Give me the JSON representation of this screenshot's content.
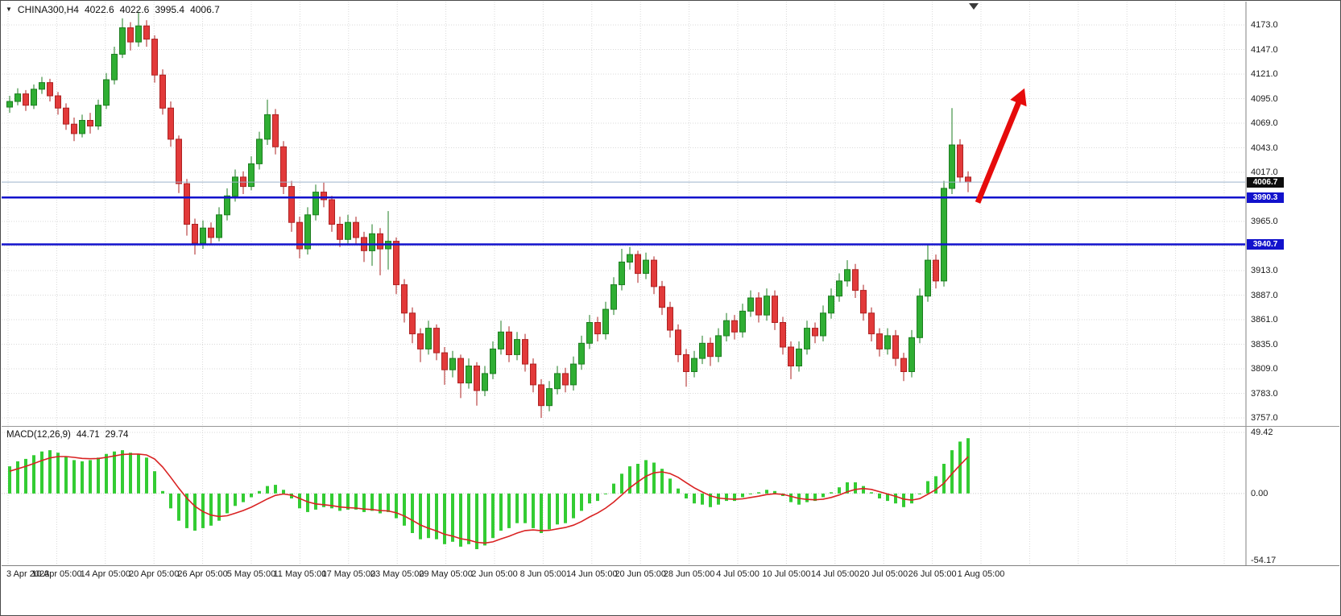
{
  "window": {
    "symbol_label": "CHINA300,H4",
    "ohlc_open": "4022.6",
    "ohlc_high": "4022.6",
    "ohlc_low": "3995.4",
    "ohlc_close": "4006.7",
    "one_click_icon": "▼"
  },
  "macd_panel": {
    "label": "MACD(12,26,9)",
    "main_value": "44.71",
    "signal_value": "29.74",
    "scale_top": "49.42",
    "scale_zero": "0.00",
    "scale_bottom": "-54.17"
  },
  "colors": {
    "bull": "#2fae33",
    "bull_border": "#1d7d20",
    "bear": "#e23a3a",
    "bear_border": "#ad2222",
    "hline": "#1212cc",
    "grid": "#d9d9d9",
    "macd_grid": "#c9c9c9",
    "signal": "#d92222",
    "histogram": "#33cc33",
    "current_price_line": "#9db4cc",
    "separator": "#808080",
    "shift_marker": "#3a3a3a"
  },
  "chart_data": {
    "type": "candlestick",
    "symbol": "CHINA300",
    "timeframe": "H4",
    "title": "CHINA300,H4 4022.6 4022.6 3995.4 4006.7",
    "current_price": 4006.7,
    "current_price_label": "4006.7",
    "y_tick_labels": [
      "4173.0",
      "4147.0",
      "4121.0",
      "4095.0",
      "4069.0",
      "4043.0",
      "4017.0",
      "3991.0",
      "3965.0",
      "3939.0",
      "3913.0",
      "3887.0",
      "3861.0",
      "3835.0",
      "3809.0",
      "3783.0",
      "3757.0"
    ],
    "y_tick_interval": 26,
    "x_labels": [
      "3 Apr 2023",
      "10 Apr 05:00",
      "14 Apr 05:00",
      "20 Apr 05:00",
      "26 Apr 05:00",
      "5 May 05:00",
      "11 May 05:00",
      "17 May 05:00",
      "23 May 05:00",
      "29 May 05:00",
      "2 Jun 05:00",
      "8 Jun 05:00",
      "14 Jun 05:00",
      "20 Jun 05:00",
      "28 Jun 05:00",
      "4 Jul 05:00",
      "10 Jul 05:00",
      "14 Jul 05:00",
      "20 Jul 05:00",
      "26 Jul 05:00",
      "1 Aug 05:00"
    ],
    "horizontal_lines": [
      {
        "price": 3990.3,
        "label": "3990.3",
        "role": "support-resistance"
      },
      {
        "price": 3940.7,
        "label": "3940.7",
        "role": "support-resistance"
      }
    ],
    "annotations": [
      {
        "type": "arrow",
        "direction": "up",
        "from_price": 3985,
        "to_price": 4106,
        "color": "#e60b0b"
      }
    ],
    "candles": [
      [
        4086,
        4098,
        4080,
        4092
      ],
      [
        4092,
        4106,
        4088,
        4100
      ],
      [
        4100,
        4104,
        4082,
        4088
      ],
      [
        4088,
        4110,
        4084,
        4105
      ],
      [
        4105,
        4118,
        4100,
        4112
      ],
      [
        4112,
        4116,
        4092,
        4098
      ],
      [
        4098,
        4102,
        4078,
        4085
      ],
      [
        4085,
        4090,
        4062,
        4068
      ],
      [
        4068,
        4075,
        4050,
        4058
      ],
      [
        4058,
        4078,
        4054,
        4072
      ],
      [
        4072,
        4080,
        4058,
        4066
      ],
      [
        4066,
        4094,
        4062,
        4088
      ],
      [
        4088,
        4122,
        4084,
        4115
      ],
      [
        4115,
        4150,
        4110,
        4142
      ],
      [
        4142,
        4180,
        4138,
        4170
      ],
      [
        4170,
        4176,
        4146,
        4155
      ],
      [
        4155,
        4187,
        4150,
        4172
      ],
      [
        4172,
        4178,
        4150,
        4158
      ],
      [
        4158,
        4162,
        4112,
        4120
      ],
      [
        4120,
        4126,
        4078,
        4085
      ],
      [
        4085,
        4092,
        4044,
        4052
      ],
      [
        4052,
        4056,
        3995,
        4005
      ],
      [
        4005,
        4010,
        3950,
        3962
      ],
      [
        3962,
        3968,
        3930,
        3942
      ],
      [
        3942,
        3966,
        3936,
        3958
      ],
      [
        3958,
        3964,
        3940,
        3948
      ],
      [
        3948,
        3980,
        3944,
        3972
      ],
      [
        3972,
        4000,
        3966,
        3992
      ],
      [
        3992,
        4020,
        3986,
        4012
      ],
      [
        4012,
        4018,
        3994,
        4002
      ],
      [
        4002,
        4034,
        3998,
        4026
      ],
      [
        4026,
        4060,
        4020,
        4052
      ],
      [
        4052,
        4094,
        4046,
        4078
      ],
      [
        4078,
        4084,
        4036,
        4044
      ],
      [
        4044,
        4050,
        3994,
        4002
      ],
      [
        4002,
        4008,
        3954,
        3964
      ],
      [
        3964,
        3970,
        3926,
        3936
      ],
      [
        3936,
        3980,
        3930,
        3972
      ],
      [
        3972,
        4004,
        3966,
        3996
      ],
      [
        3996,
        4006,
        3980,
        3988
      ],
      [
        3988,
        3992,
        3954,
        3962
      ],
      [
        3962,
        3970,
        3938,
        3946
      ],
      [
        3946,
        3972,
        3940,
        3964
      ],
      [
        3964,
        3970,
        3940,
        3948
      ],
      [
        3948,
        3954,
        3922,
        3934
      ],
      [
        3934,
        3962,
        3918,
        3952
      ],
      [
        3952,
        3958,
        3908,
        3936
      ],
      [
        3936,
        3976,
        3914,
        3944
      ],
      [
        3944,
        3948,
        3888,
        3898
      ],
      [
        3898,
        3904,
        3858,
        3868
      ],
      [
        3868,
        3874,
        3836,
        3846
      ],
      [
        3846,
        3852,
        3816,
        3830
      ],
      [
        3830,
        3860,
        3824,
        3852
      ],
      [
        3852,
        3856,
        3818,
        3826
      ],
      [
        3826,
        3832,
        3792,
        3808
      ],
      [
        3808,
        3828,
        3800,
        3820
      ],
      [
        3820,
        3824,
        3778,
        3794
      ],
      [
        3794,
        3820,
        3788,
        3812
      ],
      [
        3812,
        3816,
        3770,
        3786
      ],
      [
        3786,
        3812,
        3780,
        3804
      ],
      [
        3804,
        3838,
        3798,
        3830
      ],
      [
        3830,
        3860,
        3824,
        3848
      ],
      [
        3848,
        3854,
        3816,
        3824
      ],
      [
        3824,
        3848,
        3818,
        3840
      ],
      [
        3840,
        3846,
        3806,
        3814
      ],
      [
        3814,
        3820,
        3784,
        3792
      ],
      [
        3792,
        3798,
        3757,
        3770
      ],
      [
        3770,
        3796,
        3764,
        3788
      ],
      [
        3788,
        3812,
        3782,
        3804
      ],
      [
        3804,
        3810,
        3784,
        3792
      ],
      [
        3792,
        3822,
        3786,
        3814
      ],
      [
        3814,
        3844,
        3808,
        3836
      ],
      [
        3836,
        3866,
        3830,
        3858
      ],
      [
        3858,
        3864,
        3838,
        3846
      ],
      [
        3846,
        3880,
        3840,
        3872
      ],
      [
        3872,
        3906,
        3866,
        3898
      ],
      [
        3898,
        3936,
        3892,
        3922
      ],
      [
        3922,
        3938,
        3914,
        3930
      ],
      [
        3930,
        3934,
        3900,
        3910
      ],
      [
        3910,
        3932,
        3904,
        3924
      ],
      [
        3924,
        3928,
        3888,
        3896
      ],
      [
        3896,
        3902,
        3866,
        3874
      ],
      [
        3874,
        3880,
        3842,
        3850
      ],
      [
        3850,
        3856,
        3816,
        3824
      ],
      [
        3824,
        3830,
        3790,
        3806
      ],
      [
        3806,
        3828,
        3800,
        3820
      ],
      [
        3820,
        3844,
        3814,
        3836
      ],
      [
        3836,
        3842,
        3812,
        3822
      ],
      [
        3822,
        3852,
        3816,
        3844
      ],
      [
        3844,
        3868,
        3838,
        3860
      ],
      [
        3860,
        3866,
        3840,
        3848
      ],
      [
        3848,
        3878,
        3842,
        3870
      ],
      [
        3870,
        3892,
        3864,
        3884
      ],
      [
        3884,
        3890,
        3858,
        3866
      ],
      [
        3866,
        3894,
        3860,
        3886
      ],
      [
        3886,
        3892,
        3850,
        3858
      ],
      [
        3858,
        3864,
        3824,
        3832
      ],
      [
        3832,
        3838,
        3798,
        3812
      ],
      [
        3812,
        3838,
        3806,
        3830
      ],
      [
        3830,
        3860,
        3824,
        3852
      ],
      [
        3852,
        3858,
        3836,
        3844
      ],
      [
        3844,
        3876,
        3838,
        3868
      ],
      [
        3868,
        3894,
        3862,
        3886
      ],
      [
        3886,
        3910,
        3880,
        3902
      ],
      [
        3902,
        3924,
        3896,
        3914
      ],
      [
        3914,
        3920,
        3884,
        3892
      ],
      [
        3892,
        3898,
        3860,
        3868
      ],
      [
        3868,
        3874,
        3838,
        3846
      ],
      [
        3846,
        3852,
        3822,
        3830
      ],
      [
        3830,
        3852,
        3824,
        3844
      ],
      [
        3844,
        3850,
        3812,
        3820
      ],
      [
        3820,
        3826,
        3796,
        3806
      ],
      [
        3806,
        3850,
        3800,
        3842
      ],
      [
        3842,
        3894,
        3836,
        3886
      ],
      [
        3886,
        3940,
        3880,
        3924
      ],
      [
        3924,
        3930,
        3894,
        3902
      ],
      [
        3902,
        4008,
        3896,
        4000
      ],
      [
        4000,
        4085,
        3994,
        4046
      ],
      [
        4046,
        4052,
        4006,
        4012
      ],
      [
        4012,
        4018,
        3996,
        4006.7
      ]
    ],
    "indicator": {
      "name": "MACD",
      "params": "12,26,9",
      "macd_current": 44.71,
      "signal_current": 29.74,
      "scale_max": 49.42,
      "scale_min": -54.17,
      "histogram": [
        22,
        26,
        28,
        31,
        34,
        35,
        33,
        30,
        27,
        26,
        27,
        29,
        32,
        34,
        35,
        33,
        32,
        29,
        18,
        2,
        -12,
        -22,
        -28,
        -30,
        -28,
        -26,
        -22,
        -16,
        -10,
        -7,
        -3,
        2,
        6,
        7,
        3,
        -4,
        -12,
        -15,
        -13,
        -11,
        -12,
        -14,
        -13,
        -13,
        -15,
        -14,
        -16,
        -15,
        -20,
        -26,
        -32,
        -37,
        -36,
        -37,
        -41,
        -39,
        -43,
        -41,
        -45,
        -42,
        -36,
        -30,
        -28,
        -24,
        -24,
        -28,
        -32,
        -29,
        -25,
        -24,
        -20,
        -14,
        -8,
        -6,
        0,
        8,
        16,
        22,
        24,
        27,
        25,
        20,
        12,
        4,
        -4,
        -8,
        -9,
        -11,
        -9,
        -6,
        -6,
        -3,
        0,
        1,
        3,
        2,
        -2,
        -7,
        -9,
        -7,
        -6,
        -3,
        1,
        5,
        9,
        9,
        6,
        1,
        -4,
        -6,
        -8,
        -11,
        -8,
        0,
        10,
        14,
        24,
        35,
        42,
        44.71
      ],
      "signal_series": [
        18,
        20,
        22,
        24.3,
        26.7,
        28.8,
        29.9,
        29.9,
        29.2,
        28.4,
        28.1,
        28.3,
        29.2,
        30.4,
        31.6,
        31.9,
        31.9,
        31.2,
        27.9,
        21.4,
        13.1,
        4.3,
        -3.8,
        -10.3,
        -14.7,
        -17.5,
        -18.6,
        -18,
        -16,
        -13.8,
        -11.1,
        -7.8,
        -4.4,
        -1.5,
        -0.4,
        -1.3,
        -4,
        -6.8,
        -8.4,
        -9.1,
        -9.8,
        -10.9,
        -11.4,
        -11.8,
        -12.6,
        -13,
        -13.8,
        -14.1,
        -15.6,
        -18.2,
        -21.7,
        -25.5,
        -28.1,
        -30.3,
        -33,
        -34.5,
        -36.6,
        -37.7,
        -39.5,
        -40.1,
        -39.1,
        -36.8,
        -34.6,
        -32,
        -30,
        -29.5,
        -30.1,
        -29.8,
        -28.6,
        -27.5,
        -25.6,
        -22.7,
        -19,
        -15.8,
        -11.8,
        -6.9,
        -1.2,
        4.6,
        9.5,
        13.9,
        16.7,
        17.5,
        16.1,
        13.1,
        8.8,
        4.6,
        1.2,
        -1.9,
        -3.7,
        -4.3,
        -4.7,
        -4.3,
        -3.2,
        -2.2,
        -0.9,
        -0.2,
        -0.7,
        -2.3,
        -4,
        -4.8,
        -5.1,
        -4.6,
        -3.2,
        -1.2,
        1.4,
        3.3,
        4,
        3.3,
        1.5,
        -0.4,
        -2.3,
        -4.5,
        -5.4,
        -4.1,
        -0.6,
        3.1,
        8.3,
        16,
        23,
        29.74
      ]
    }
  }
}
